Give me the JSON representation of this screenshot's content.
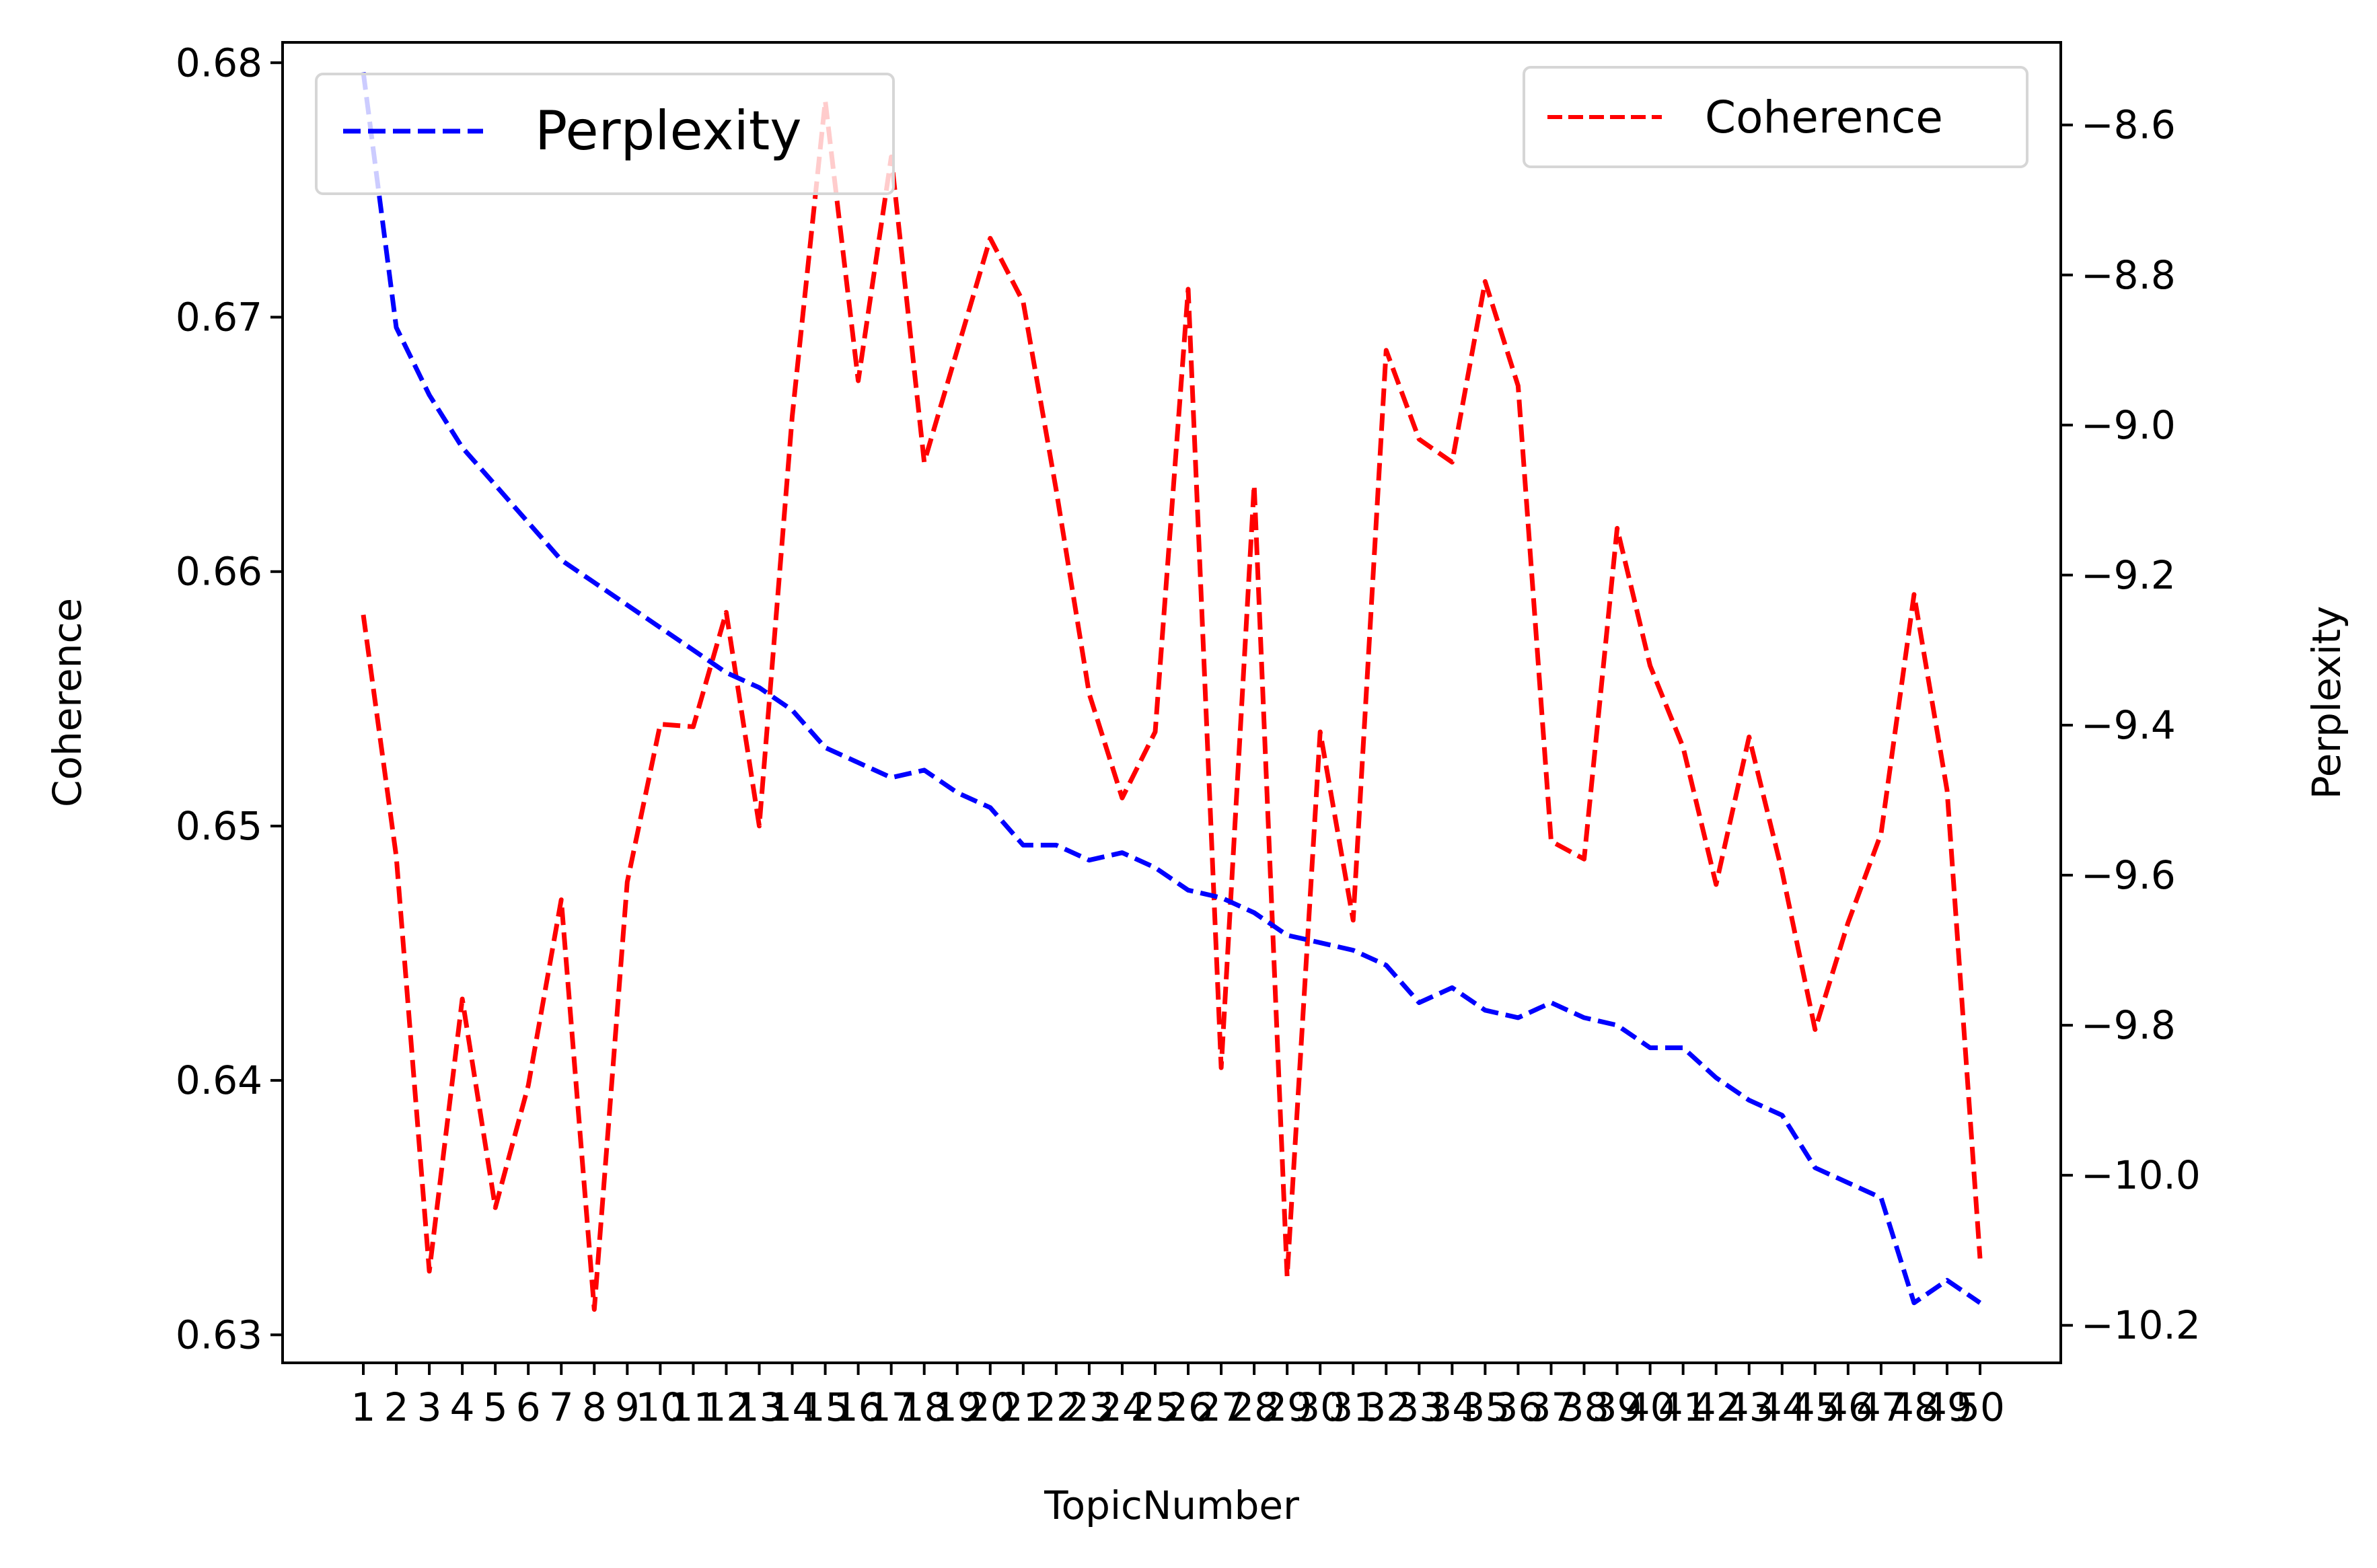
{
  "colors": {
    "coherence": "#ff0000",
    "perplexity": "#0000ff",
    "axis": "#000000",
    "legend_border": "#d6d6d6"
  },
  "legends": {
    "left": {
      "label": "Perplexity",
      "placement": "upper-left"
    },
    "right": {
      "label": "Coherence",
      "placement": "upper-right"
    }
  },
  "chart_data": {
    "type": "line",
    "xlabel": "TopicNumber",
    "ylabel_left": "Coherence",
    "ylabel_right": "Perplexity",
    "grid": false,
    "x": [
      1,
      2,
      3,
      4,
      5,
      6,
      7,
      8,
      9,
      10,
      11,
      12,
      13,
      14,
      15,
      16,
      17,
      18,
      19,
      20,
      21,
      22,
      23,
      24,
      25,
      26,
      27,
      28,
      29,
      30,
      31,
      32,
      33,
      34,
      35,
      36,
      37,
      38,
      39,
      40,
      41,
      42,
      43,
      44,
      45,
      46,
      47,
      48,
      49,
      50
    ],
    "xticks": [
      "1",
      "2",
      "3",
      "4",
      "5",
      "6",
      "7",
      "8",
      "9",
      "10",
      "11",
      "12",
      "13",
      "14",
      "15",
      "16",
      "17",
      "18",
      "19",
      "20",
      "21",
      "22",
      "23",
      "24",
      "25",
      "26",
      "27",
      "28",
      "29",
      "30",
      "31",
      "32",
      "33",
      "34",
      "35",
      "36",
      "37",
      "38",
      "39",
      "40",
      "41",
      "42",
      "43",
      "44",
      "45",
      "46",
      "47",
      "48",
      "49",
      "50"
    ],
    "left_axis": {
      "ylim": [
        0.6289,
        0.6808
      ],
      "ticks": [
        0.63,
        0.64,
        0.65,
        0.66,
        0.67,
        0.68
      ],
      "tick_labels": [
        "0.63",
        "0.64",
        "0.65",
        "0.66",
        "0.67",
        "0.68"
      ]
    },
    "right_axis": {
      "ylim": [
        -10.25,
        -8.49
      ],
      "ticks": [
        -10.2,
        -10.0,
        -9.8,
        -9.6,
        -9.4,
        -9.2,
        -9.0,
        -8.8,
        -8.6
      ],
      "tick_labels": [
        "−10.2",
        "−10.0",
        "−9.8",
        "−9.6",
        "−9.4",
        "−9.2",
        "−9.0",
        "−8.8",
        "−8.6"
      ]
    },
    "series": [
      {
        "name": "Coherence",
        "axis": "left",
        "style": "dashed",
        "color": "#ff0000",
        "values": [
          0.6583,
          0.6488,
          0.6325,
          0.6432,
          0.635,
          0.6398,
          0.6471,
          0.631,
          0.6478,
          0.654,
          0.6539,
          0.6584,
          0.65,
          0.6661,
          0.6785,
          0.6675,
          0.6763,
          0.6643,
          0.6687,
          0.6731,
          0.6706,
          0.6632,
          0.6552,
          0.6511,
          0.6537,
          0.6711,
          0.6405,
          0.6634,
          0.6323,
          0.6537,
          0.6463,
          0.6687,
          0.6652,
          0.6643,
          0.6714,
          0.6673,
          0.6494,
          0.6487,
          0.6617,
          0.6563,
          0.6531,
          0.6477,
          0.6535,
          0.6482,
          0.642,
          0.6462,
          0.6497,
          0.6591,
          0.6514,
          0.633
        ]
      },
      {
        "name": "Perplexity",
        "axis": "right",
        "style": "dashed",
        "color": "#0000ff",
        "values": [
          -8.53,
          -8.87,
          -8.96,
          -9.03,
          -9.08,
          -9.13,
          -9.18,
          -9.21,
          -9.24,
          -9.27,
          -9.3,
          -9.33,
          -9.35,
          -9.38,
          -9.43,
          -9.45,
          -9.47,
          -9.46,
          -9.49,
          -9.51,
          -9.56,
          -9.56,
          -9.58,
          -9.57,
          -9.59,
          -9.62,
          -9.63,
          -9.65,
          -9.68,
          -9.69,
          -9.7,
          -9.72,
          -9.77,
          -9.75,
          -9.78,
          -9.79,
          -9.77,
          -9.79,
          -9.8,
          -9.83,
          -9.83,
          -9.87,
          -9.9,
          -9.92,
          -9.99,
          -10.01,
          -10.03,
          -10.17,
          -10.14,
          -10.17
        ]
      }
    ]
  }
}
